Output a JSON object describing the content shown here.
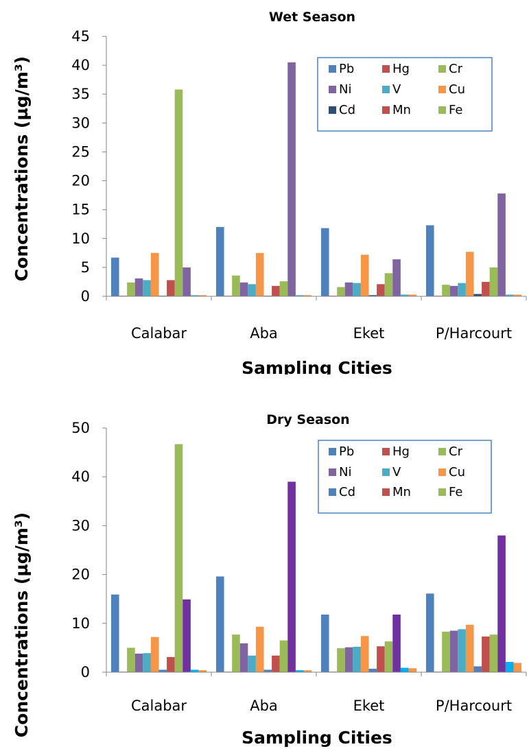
{
  "chart_data": [
    {
      "type": "bar",
      "title": "Wet Season",
      "xlabel": "Sampling Cities",
      "ylabel": "Concentrations (µg/m³)",
      "ylim": [
        0,
        45
      ],
      "yticks": [
        0,
        5,
        10,
        15,
        20,
        25,
        30,
        35,
        40,
        45
      ],
      "categories": [
        "Calabar",
        "Aba",
        "Eket",
        "P/Harcourt"
      ],
      "series": [
        {
          "name": "Pb",
          "color": "#4F81BD",
          "values": [
            6.7,
            12.0,
            11.8,
            12.3
          ]
        },
        {
          "name": "Hg",
          "color": "#C0504D",
          "values": [
            0.1,
            0.1,
            0.1,
            0.1
          ]
        },
        {
          "name": "Cr",
          "color": "#9BBB59",
          "values": [
            2.4,
            3.6,
            1.6,
            2.0
          ]
        },
        {
          "name": "Ni",
          "color": "#8064A2",
          "values": [
            3.1,
            2.4,
            2.4,
            1.8
          ]
        },
        {
          "name": "V",
          "color": "#4BACC6",
          "values": [
            2.8,
            2.1,
            2.3,
            2.3
          ]
        },
        {
          "name": "Cu",
          "color": "#F79646",
          "values": [
            7.5,
            7.5,
            7.2,
            7.7
          ]
        },
        {
          "name": "Cd",
          "color": "#2C4D75",
          "values": [
            0.1,
            0.1,
            0.2,
            0.4
          ]
        },
        {
          "name": "Mn",
          "color": "#C0504D",
          "values": [
            2.8,
            1.8,
            2.1,
            2.5
          ]
        },
        {
          "name": "Fe",
          "color": "#9BBB59",
          "values": [
            35.8,
            2.6,
            4.0,
            5.0
          ]
        },
        {
          "name": "",
          "color": "#8064A2",
          "values": [
            5.0,
            40.5,
            6.4,
            17.8
          ]
        },
        {
          "name": "",
          "color": "#4BACC6",
          "values": [
            0.2,
            0.2,
            0.3,
            0.3
          ]
        },
        {
          "name": "",
          "color": "#F79646",
          "values": [
            0.2,
            0.2,
            0.3,
            0.3
          ]
        }
      ],
      "legend": {
        "position": "top-right",
        "items": [
          {
            "name": "Pb",
            "color": "#4F81BD"
          },
          {
            "name": "Hg",
            "color": "#C0504D"
          },
          {
            "name": "Cr",
            "color": "#9BBB59"
          },
          {
            "name": "Ni",
            "color": "#8064A2"
          },
          {
            "name": "V",
            "color": "#4BACC6"
          },
          {
            "name": "Cu",
            "color": "#F79646"
          },
          {
            "name": "Cd",
            "color": "#2C4D75"
          },
          {
            "name": "Mn",
            "color": "#C0504D"
          },
          {
            "name": "Fe",
            "color": "#9BBB59"
          }
        ]
      },
      "grid": false
    },
    {
      "type": "bar",
      "title": "Dry Season",
      "xlabel": "Sampling Cities",
      "ylabel": "Concentrations (µg/m³)",
      "ylim": [
        0,
        50
      ],
      "yticks": [
        0,
        10,
        20,
        30,
        40,
        50
      ],
      "categories": [
        "Calabar",
        "Aba",
        "Eket",
        "P/Harcourt"
      ],
      "series": [
        {
          "name": "Pb",
          "color": "#4F81BD",
          "values": [
            15.9,
            19.6,
            11.8,
            16.1
          ]
        },
        {
          "name": "Hg",
          "color": "#C0504D",
          "values": [
            0.1,
            0.1,
            0.1,
            0.1
          ]
        },
        {
          "name": "Cr",
          "color": "#9BBB59",
          "values": [
            5.0,
            7.7,
            4.9,
            8.3
          ]
        },
        {
          "name": "Ni",
          "color": "#8064A2",
          "values": [
            3.8,
            5.9,
            5.1,
            8.5
          ]
        },
        {
          "name": "V",
          "color": "#4BACC6",
          "values": [
            3.9,
            3.4,
            5.2,
            8.8
          ]
        },
        {
          "name": "Cu",
          "color": "#F79646",
          "values": [
            7.2,
            9.3,
            7.4,
            9.7
          ]
        },
        {
          "name": "Cd",
          "color": "#4F81BD",
          "values": [
            0.5,
            0.5,
            0.7,
            1.2
          ]
        },
        {
          "name": "Mn",
          "color": "#C0504D",
          "values": [
            3.1,
            3.4,
            5.3,
            7.3
          ]
        },
        {
          "name": "Fe",
          "color": "#9BBB59",
          "values": [
            46.7,
            6.5,
            6.3,
            7.7
          ]
        },
        {
          "name": "",
          "color": "#7030A0",
          "values": [
            14.9,
            39.0,
            11.8,
            28.0
          ]
        },
        {
          "name": "",
          "color": "#00B0F0",
          "values": [
            0.5,
            0.4,
            0.9,
            2.1
          ]
        },
        {
          "name": "",
          "color": "#F79646",
          "values": [
            0.4,
            0.4,
            0.8,
            1.9
          ]
        }
      ],
      "legend": {
        "position": "top-right",
        "items": [
          {
            "name": "Pb",
            "color": "#4F81BD"
          },
          {
            "name": "Hg",
            "color": "#C0504D"
          },
          {
            "name": "Cr",
            "color": "#9BBB59"
          },
          {
            "name": "Ni",
            "color": "#8064A2"
          },
          {
            "name": "V",
            "color": "#4BACC6"
          },
          {
            "name": "Cu",
            "color": "#F79646"
          },
          {
            "name": "Cd",
            "color": "#4F81BD"
          },
          {
            "name": "Mn",
            "color": "#C0504D"
          },
          {
            "name": "Fe",
            "color": "#9BBB59"
          }
        ]
      },
      "grid": false
    }
  ]
}
